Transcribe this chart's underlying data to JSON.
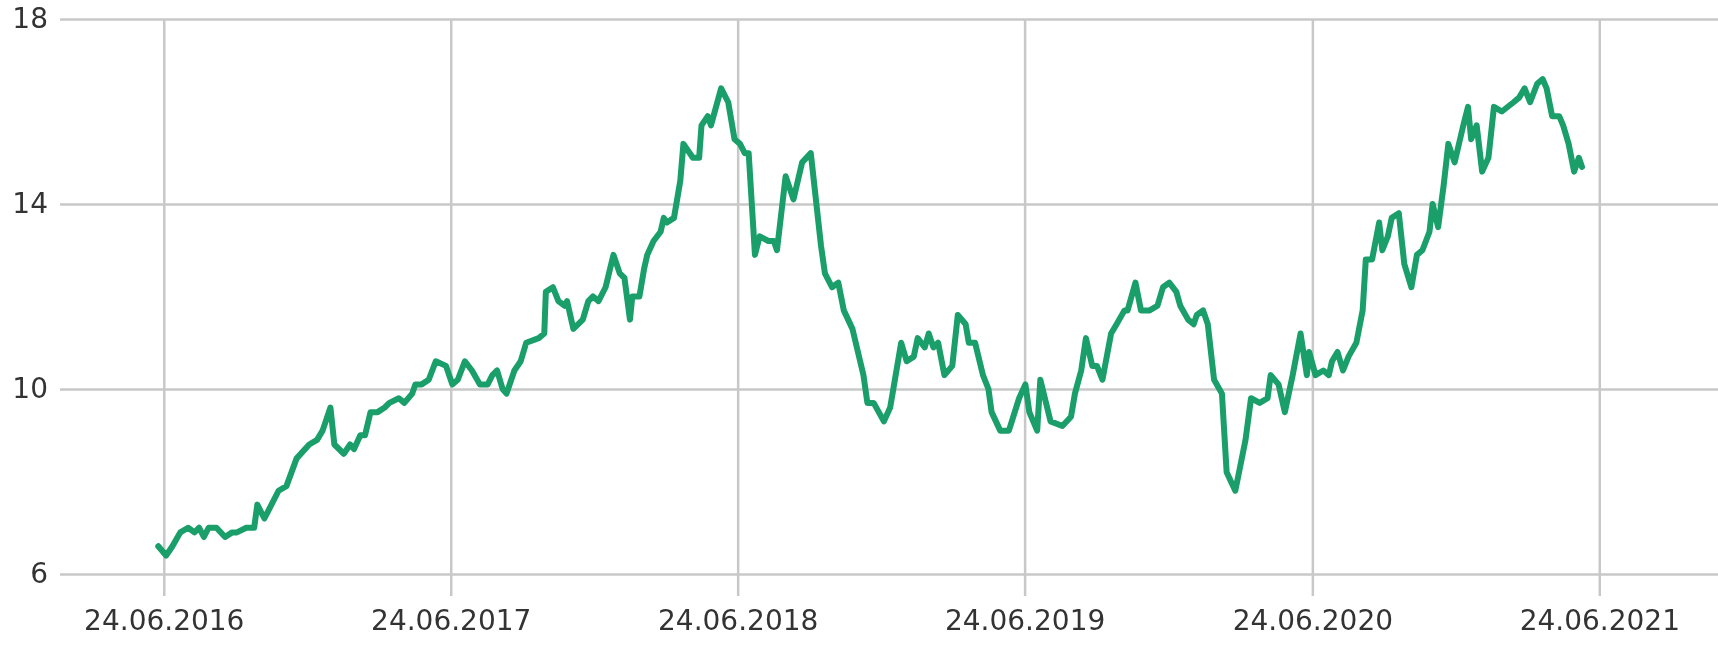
{
  "chart_data": {
    "type": "line",
    "grid": true,
    "line_style": "solid",
    "marker": "none",
    "xlim": [
      "2016-02-13",
      "2021-11-22"
    ],
    "ylim": [
      6,
      18
    ],
    "yticks": [
      6,
      10,
      14,
      18
    ],
    "xticks": [
      {
        "value": "2016-06-24",
        "label": "24.06.2016"
      },
      {
        "value": "2017-06-24",
        "label": "24.06.2017"
      },
      {
        "value": "2018-06-24",
        "label": "24.06.2018"
      },
      {
        "value": "2019-06-24",
        "label": "24.06.2019"
      },
      {
        "value": "2020-06-24",
        "label": "24.06.2020"
      },
      {
        "value": "2021-06-24",
        "label": "24.06.2021"
      }
    ],
    "x": [
      "2016-06-17",
      "2016-06-27",
      "2016-07-05",
      "2016-07-15",
      "2016-07-25",
      "2016-08-02",
      "2016-08-08",
      "2016-08-14",
      "2016-08-20",
      "2016-08-30",
      "2016-09-10",
      "2016-09-19",
      "2016-09-25",
      "2016-10-07",
      "2016-10-17",
      "2016-10-21",
      "2016-10-30",
      "2016-11-17",
      "2016-11-27",
      "2016-12-10",
      "2016-12-26",
      "2017-01-05",
      "2017-01-12",
      "2017-01-22",
      "2017-01-27",
      "2017-02-08",
      "2017-02-16",
      "2017-02-21",
      "2017-03-01",
      "2017-03-07",
      "2017-03-14",
      "2017-03-23",
      "2017-04-01",
      "2017-04-07",
      "2017-04-19",
      "2017-04-26",
      "2017-05-06",
      "2017-05-10",
      "2017-05-18",
      "2017-05-27",
      "2017-06-05",
      "2017-06-18",
      "2017-06-26",
      "2017-07-03",
      "2017-07-12",
      "2017-07-21",
      "2017-07-31",
      "2017-08-10",
      "2017-08-16",
      "2017-08-22",
      "2017-08-29",
      "2017-09-03",
      "2017-09-13",
      "2017-09-21",
      "2017-09-28",
      "2017-10-14",
      "2017-10-21",
      "2017-10-23",
      "2017-11-01",
      "2017-11-08",
      "2017-11-16",
      "2017-11-19",
      "2017-11-27",
      "2017-12-09",
      "2017-12-16",
      "2017-12-22",
      "2017-12-29",
      "2018-01-07",
      "2018-01-17",
      "2018-01-25",
      "2018-01-31",
      "2018-02-07",
      "2018-02-10",
      "2018-02-19",
      "2018-02-25",
      "2018-03-01",
      "2018-03-09",
      "2018-03-18",
      "2018-03-22",
      "2018-03-26",
      "2018-04-04",
      "2018-04-12",
      "2018-04-16",
      "2018-04-28",
      "2018-05-06",
      "2018-05-09",
      "2018-05-17",
      "2018-05-21",
      "2018-06-03",
      "2018-06-12",
      "2018-06-20",
      "2018-06-27",
      "2018-07-03",
      "2018-07-08",
      "2018-07-16",
      "2018-07-22",
      "2018-08-02",
      "2018-08-09",
      "2018-08-13",
      "2018-08-24",
      "2018-09-03",
      "2018-09-14",
      "2018-09-25",
      "2018-10-08",
      "2018-10-13",
      "2018-10-22",
      "2018-10-30",
      "2018-11-06",
      "2018-11-17",
      "2018-12-01",
      "2018-12-06",
      "2018-12-14",
      "2018-12-27",
      "2019-01-04",
      "2019-01-10",
      "2019-01-18",
      "2019-01-25",
      "2019-02-03",
      "2019-02-08",
      "2019-02-17",
      "2019-02-22",
      "2019-02-28",
      "2019-03-06",
      "2019-03-14",
      "2019-03-24",
      "2019-03-31",
      "2019-04-10",
      "2019-04-14",
      "2019-04-22",
      "2019-05-02",
      "2019-05-09",
      "2019-05-13",
      "2019-05-24",
      "2019-06-04",
      "2019-06-17",
      "2019-06-25",
      "2019-06-30",
      "2019-07-10",
      "2019-07-14",
      "2019-07-27",
      "2019-08-11",
      "2019-08-22",
      "2019-08-27",
      "2019-09-04",
      "2019-09-10",
      "2019-09-18",
      "2019-09-24",
      "2019-10-01",
      "2019-10-12",
      "2019-10-19",
      "2019-10-29",
      "2019-11-02",
      "2019-11-12",
      "2019-11-19",
      "2019-11-30",
      "2019-12-10",
      "2019-12-17",
      "2019-12-25",
      "2020-01-03",
      "2020-01-08",
      "2020-01-18",
      "2020-01-25",
      "2020-01-29",
      "2020-02-06",
      "2020-02-12",
      "2020-02-20",
      "2020-03-01",
      "2020-03-07",
      "2020-03-18",
      "2020-03-31",
      "2020-04-07",
      "2020-04-18",
      "2020-04-28",
      "2020-05-02",
      "2020-05-12",
      "2020-05-20",
      "2020-05-30",
      "2020-06-09",
      "2020-06-17",
      "2020-06-20",
      "2020-06-28",
      "2020-07-08",
      "2020-07-15",
      "2020-07-19",
      "2020-07-26",
      "2020-08-02",
      "2020-08-09",
      "2020-08-19",
      "2020-08-27",
      "2020-08-31",
      "2020-09-08",
      "2020-09-17",
      "2020-09-21",
      "2020-09-28",
      "2020-10-03",
      "2020-10-12",
      "2020-10-19",
      "2020-10-28",
      "2020-11-04",
      "2020-11-11",
      "2020-11-20",
      "2020-11-24",
      "2020-12-01",
      "2020-12-08",
      "2020-12-14",
      "2020-12-22",
      "2021-01-02",
      "2021-01-08",
      "2021-01-12",
      "2021-01-19",
      "2021-01-26",
      "2021-02-03",
      "2021-02-10",
      "2021-02-20",
      "2021-03-07",
      "2021-03-14",
      "2021-03-21",
      "2021-03-28",
      "2021-04-06",
      "2021-04-13",
      "2021-04-18",
      "2021-04-25",
      "2021-05-04",
      "2021-05-09",
      "2021-05-16",
      "2021-05-23",
      "2021-05-29",
      "2021-06-02"
    ],
    "series": [
      {
        "color": "#1a9e6a",
        "values": [
          6.6,
          6.4,
          6.6,
          6.9,
          7.0,
          6.9,
          7.0,
          6.8,
          7.0,
          7.0,
          6.8,
          6.9,
          6.9,
          7.0,
          7.0,
          7.5,
          7.2,
          7.8,
          7.9,
          8.5,
          8.8,
          8.9,
          9.1,
          9.6,
          8.8,
          8.6,
          8.8,
          8.7,
          9.0,
          9.0,
          9.5,
          9.5,
          9.6,
          9.7,
          9.8,
          9.7,
          9.9,
          10.1,
          10.1,
          10.2,
          10.6,
          10.5,
          10.1,
          10.2,
          10.6,
          10.4,
          10.1,
          10.1,
          10.3,
          10.4,
          10.0,
          9.9,
          10.4,
          10.6,
          11.0,
          11.1,
          11.2,
          12.1,
          12.2,
          11.9,
          11.8,
          11.9,
          11.3,
          11.5,
          11.9,
          12.0,
          11.9,
          12.2,
          12.9,
          12.5,
          12.4,
          11.5,
          12.0,
          12.0,
          12.6,
          12.9,
          13.2,
          13.4,
          13.7,
          13.6,
          13.7,
          14.5,
          15.3,
          15.0,
          15.0,
          15.7,
          15.9,
          15.7,
          16.5,
          16.2,
          15.4,
          15.3,
          15.1,
          15.1,
          12.9,
          13.3,
          13.2,
          13.2,
          13.0,
          14.6,
          14.1,
          14.9,
          15.1,
          13.1,
          12.5,
          12.2,
          12.3,
          11.7,
          11.3,
          10.3,
          9.7,
          9.7,
          9.3,
          9.6,
          10.2,
          11.0,
          10.6,
          10.7,
          11.1,
          10.9,
          11.2,
          10.9,
          11.0,
          10.3,
          10.5,
          11.6,
          11.4,
          11.0,
          11.0,
          10.3,
          10.0,
          9.5,
          9.1,
          9.1,
          9.8,
          10.1,
          9.5,
          9.1,
          10.2,
          9.3,
          9.2,
          9.4,
          9.9,
          10.4,
          11.1,
          10.5,
          10.5,
          10.2,
          11.2,
          11.4,
          11.7,
          11.7,
          12.3,
          11.7,
          11.7,
          11.8,
          12.2,
          12.3,
          12.1,
          11.8,
          11.5,
          11.4,
          11.6,
          11.7,
          11.4,
          10.2,
          9.9,
          8.2,
          7.8,
          8.9,
          9.8,
          9.7,
          9.8,
          10.3,
          10.1,
          9.5,
          10.3,
          11.2,
          10.3,
          10.8,
          10.3,
          10.4,
          10.3,
          10.6,
          10.8,
          10.4,
          10.7,
          11.0,
          11.7,
          12.8,
          12.8,
          13.6,
          13.0,
          13.3,
          13.7,
          13.8,
          12.7,
          12.2,
          12.9,
          13.0,
          13.4,
          14.0,
          13.5,
          14.4,
          15.3,
          14.9,
          15.7,
          16.1,
          15.4,
          15.7,
          14.7,
          15.0,
          16.1,
          16.0,
          16.2,
          16.3,
          16.5,
          16.2,
          16.6,
          16.7,
          16.5,
          15.9,
          15.9,
          15.7,
          15.3,
          14.7,
          15.0,
          14.8
        ]
      }
    ]
  }
}
